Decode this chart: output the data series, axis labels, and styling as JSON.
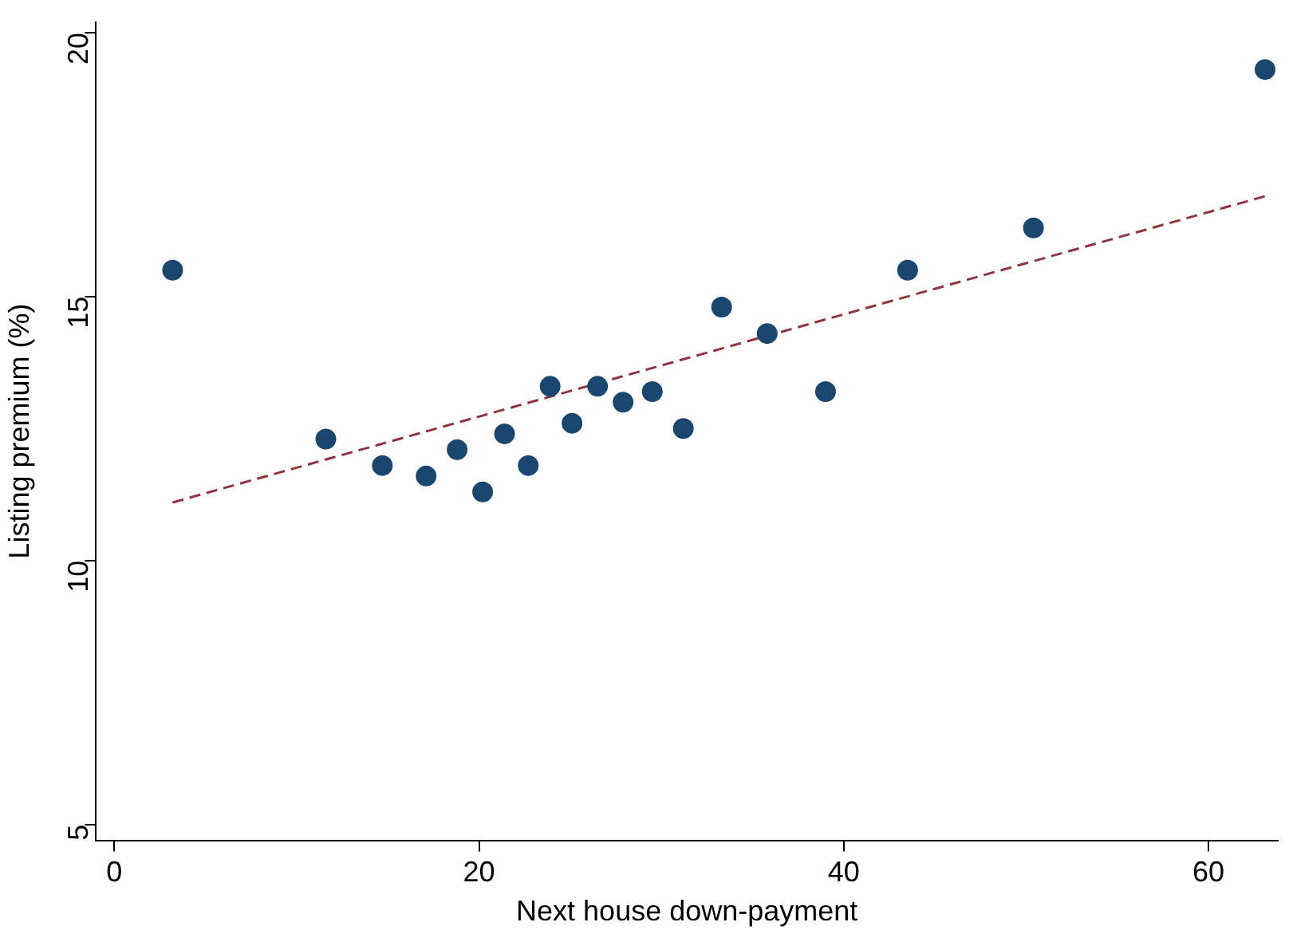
{
  "chart_data": {
    "type": "scatter",
    "xlabel": "Next house down-payment",
    "ylabel": "Listing premium (%)",
    "xlim": [
      -1,
      63.8
    ],
    "xticks": [
      0,
      20,
      40,
      60
    ],
    "ylim": [
      4.7,
      20.2
    ],
    "yticks": [
      5,
      10,
      15,
      20
    ],
    "grid": false,
    "legend": false,
    "marker": "circle",
    "series": [
      {
        "type": "scatter",
        "color": "#1a476f",
        "x": [
          3.2,
          11.6,
          14.7,
          17.1,
          18.8,
          20.2,
          21.4,
          22.7,
          23.9,
          25.1,
          26.5,
          27.9,
          29.5,
          31.2,
          33.3,
          35.8,
          39.0,
          43.5,
          50.4,
          63.1
        ],
        "values": [
          15.5,
          12.3,
          11.8,
          11.6,
          12.1,
          11.3,
          12.4,
          11.8,
          13.3,
          12.6,
          13.3,
          13.0,
          13.2,
          12.5,
          14.8,
          14.3,
          13.2,
          15.5,
          16.3,
          19.3
        ]
      },
      {
        "type": "line",
        "color": "#90353b",
        "line_style": "dashed",
        "marker": "none",
        "x": [
          3.2,
          63.1
        ],
        "values": [
          11.1,
          16.9
        ]
      }
    ]
  }
}
